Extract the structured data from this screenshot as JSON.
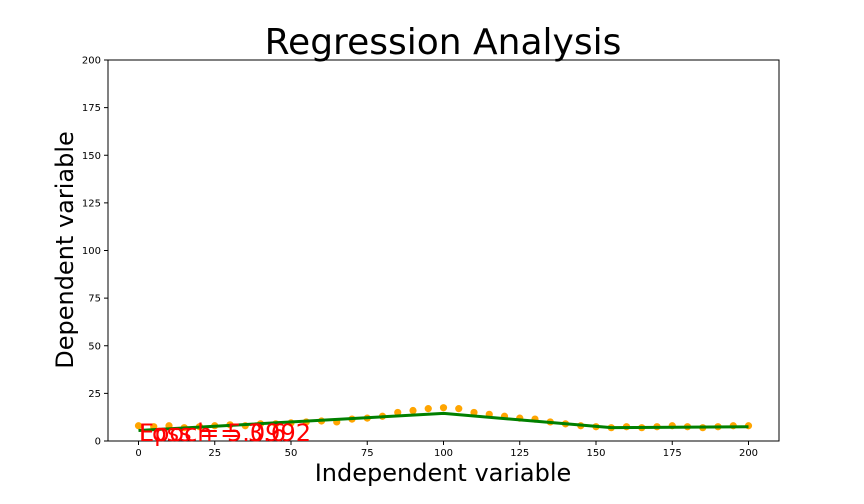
{
  "chart_data": {
    "type": "scatter",
    "title": "Regression Analysis",
    "xlabel": "Independent variable",
    "ylabel": "Dependent variable",
    "xlim": [
      -10,
      210
    ],
    "ylim": [
      0,
      200
    ],
    "xticks": [
      0,
      25,
      50,
      75,
      100,
      125,
      150,
      175,
      200
    ],
    "yticks": [
      0,
      25,
      50,
      75,
      100,
      125,
      150,
      175,
      200
    ],
    "grid": false,
    "point_color": "#ffa500",
    "line_color": "#008000",
    "annotation_color": "#ff0000",
    "annotations": [
      "Epoch = 3.6",
      "Loss = 5.0992"
    ],
    "scatter": {
      "x": [
        0,
        5,
        10,
        15,
        20,
        25,
        30,
        35,
        40,
        45,
        50,
        55,
        60,
        65,
        70,
        75,
        80,
        85,
        90,
        95,
        100,
        105,
        110,
        115,
        120,
        125,
        130,
        135,
        140,
        145,
        150,
        155,
        160,
        165,
        170,
        175,
        180,
        185,
        190,
        195,
        200
      ],
      "y": [
        8,
        7.5,
        8,
        7,
        7.5,
        8,
        8.5,
        8,
        9,
        9,
        9.5,
        10,
        10.5,
        10,
        11.5,
        12,
        13,
        15,
        16,
        17,
        17.5,
        17,
        15,
        14,
        13,
        12,
        11.5,
        10,
        9,
        8,
        7.5,
        7,
        7.5,
        7,
        7.5,
        8,
        7.5,
        7,
        7.5,
        8,
        8
      ]
    },
    "fit_line": {
      "x": [
        0,
        100,
        155,
        200
      ],
      "y": [
        5.5,
        14.5,
        7,
        7.5
      ]
    }
  }
}
